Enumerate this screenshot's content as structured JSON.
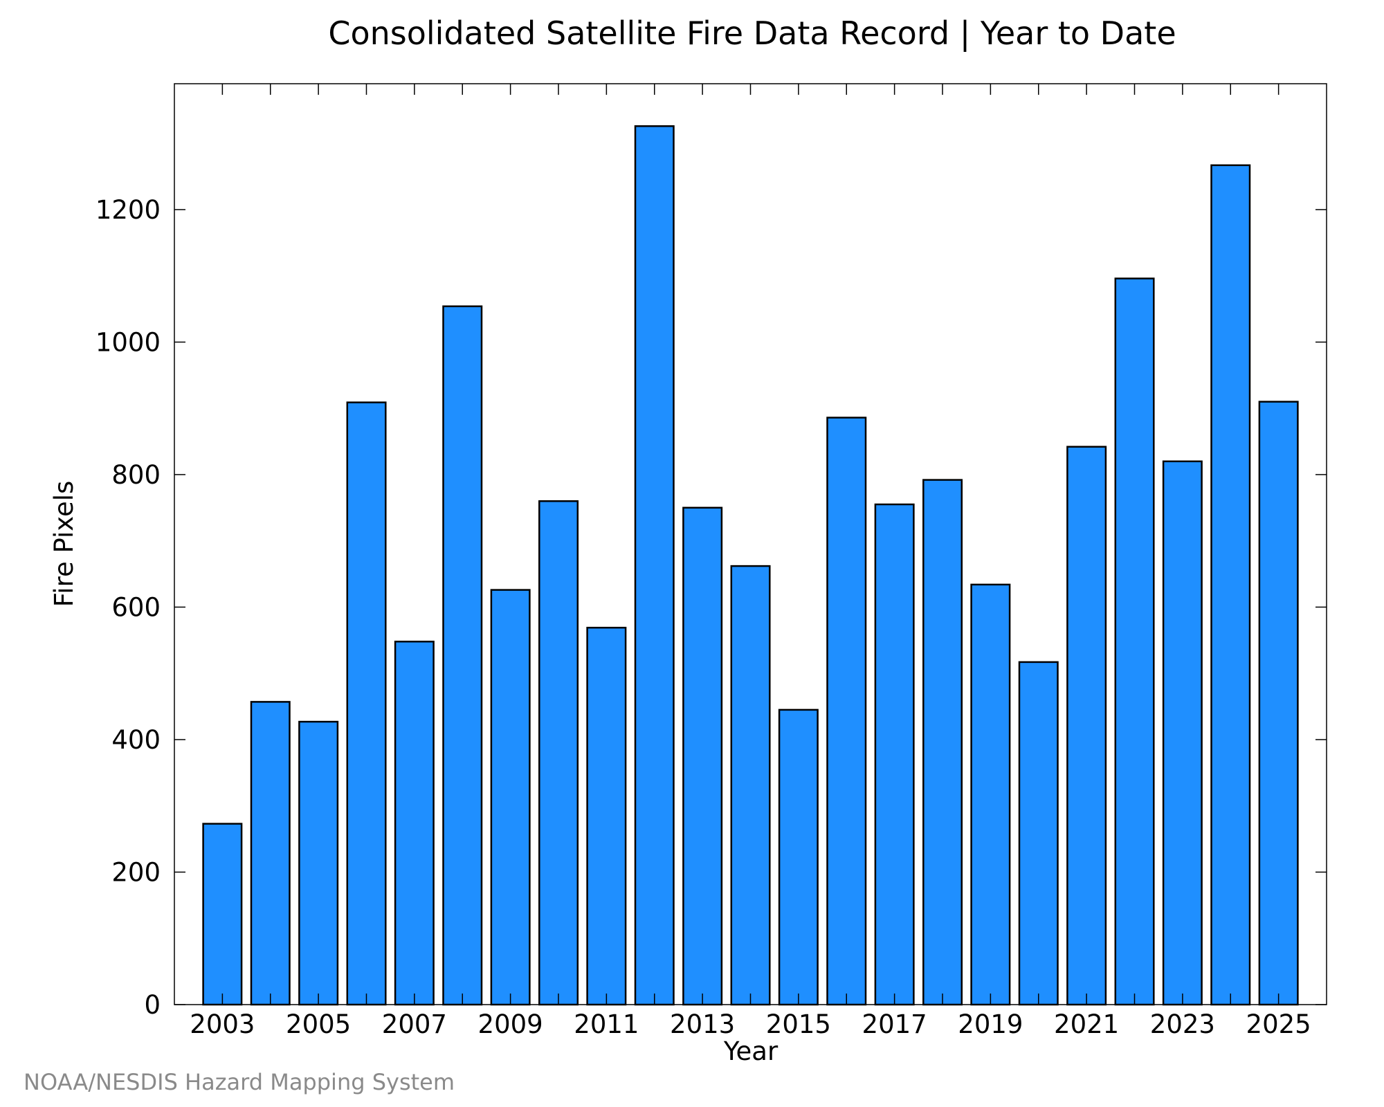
{
  "chart_data": {
    "type": "bar",
    "title": "Consolidated Satellite Fire Data Record | Year to Date",
    "xlabel": "Year",
    "ylabel": "Fire Pixels",
    "categories": [
      2003,
      2004,
      2005,
      2006,
      2007,
      2008,
      2009,
      2010,
      2011,
      2012,
      2013,
      2014,
      2015,
      2016,
      2017,
      2018,
      2019,
      2020,
      2021,
      2022,
      2023,
      2024,
      2025
    ],
    "values": [
      273,
      457,
      427,
      909,
      548,
      1054,
      626,
      760,
      569,
      1326,
      750,
      662,
      445,
      886,
      755,
      792,
      634,
      517,
      842,
      1096,
      820,
      1267,
      910
    ],
    "x_tick_labels": [
      "2003",
      "2005",
      "2007",
      "2009",
      "2011",
      "2013",
      "2015",
      "2017",
      "2019",
      "2021",
      "2023",
      "2025"
    ],
    "y_ticks": [
      0,
      200,
      400,
      600,
      800,
      1000,
      1200
    ],
    "ylim": [
      0,
      1390
    ],
    "bar_color": "#1f8fff",
    "bar_edge_color": "#000000",
    "grid": false,
    "legend": "none"
  },
  "credit": "NOAA/NESDIS Hazard Mapping System"
}
